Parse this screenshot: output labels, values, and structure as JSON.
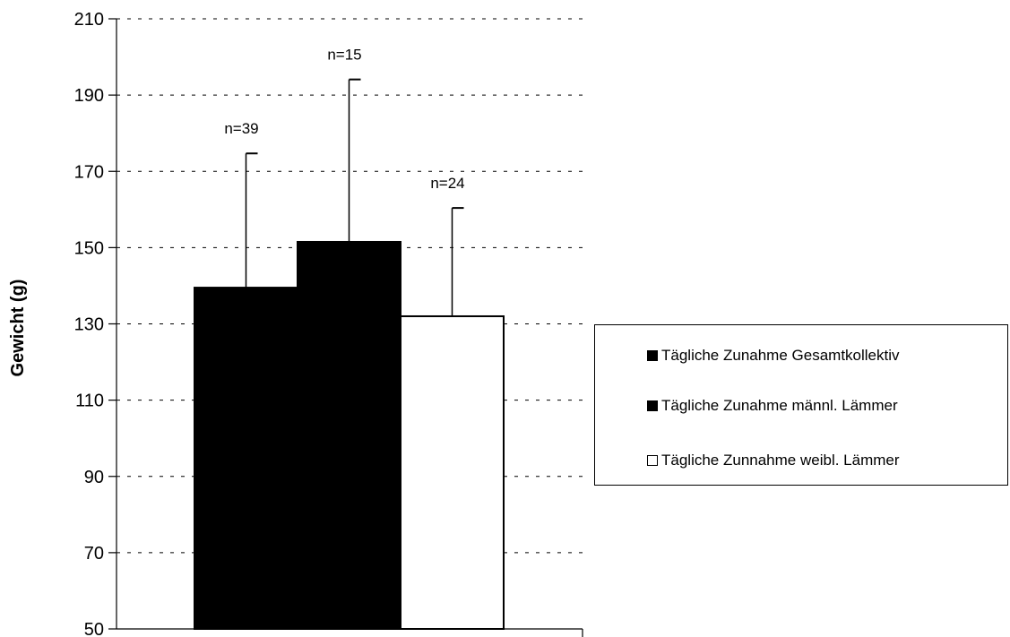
{
  "chart_data": {
    "type": "bar",
    "ylabel": "Gewicht (g)",
    "ylim": [
      50,
      210
    ],
    "yticks": [
      50,
      70,
      90,
      110,
      130,
      150,
      170,
      190,
      210
    ],
    "grid": true,
    "legend_position": "right",
    "series": [
      {
        "name": "Tägliche Zunahme Gesamtkollektiv",
        "value": 139.5,
        "error": 35.2,
        "n_label": "n=39",
        "color": "#000000"
      },
      {
        "name": "Tägliche Zunahme männl. Lämmer",
        "value": 151.5,
        "error": 42.6,
        "n_label": "n=15",
        "color": "#000000"
      },
      {
        "name": "Tägliche Zunnahme weibl. Lämmer",
        "value": 132.0,
        "error": 28.4,
        "n_label": "n=24",
        "color": "#ffffff"
      }
    ]
  }
}
